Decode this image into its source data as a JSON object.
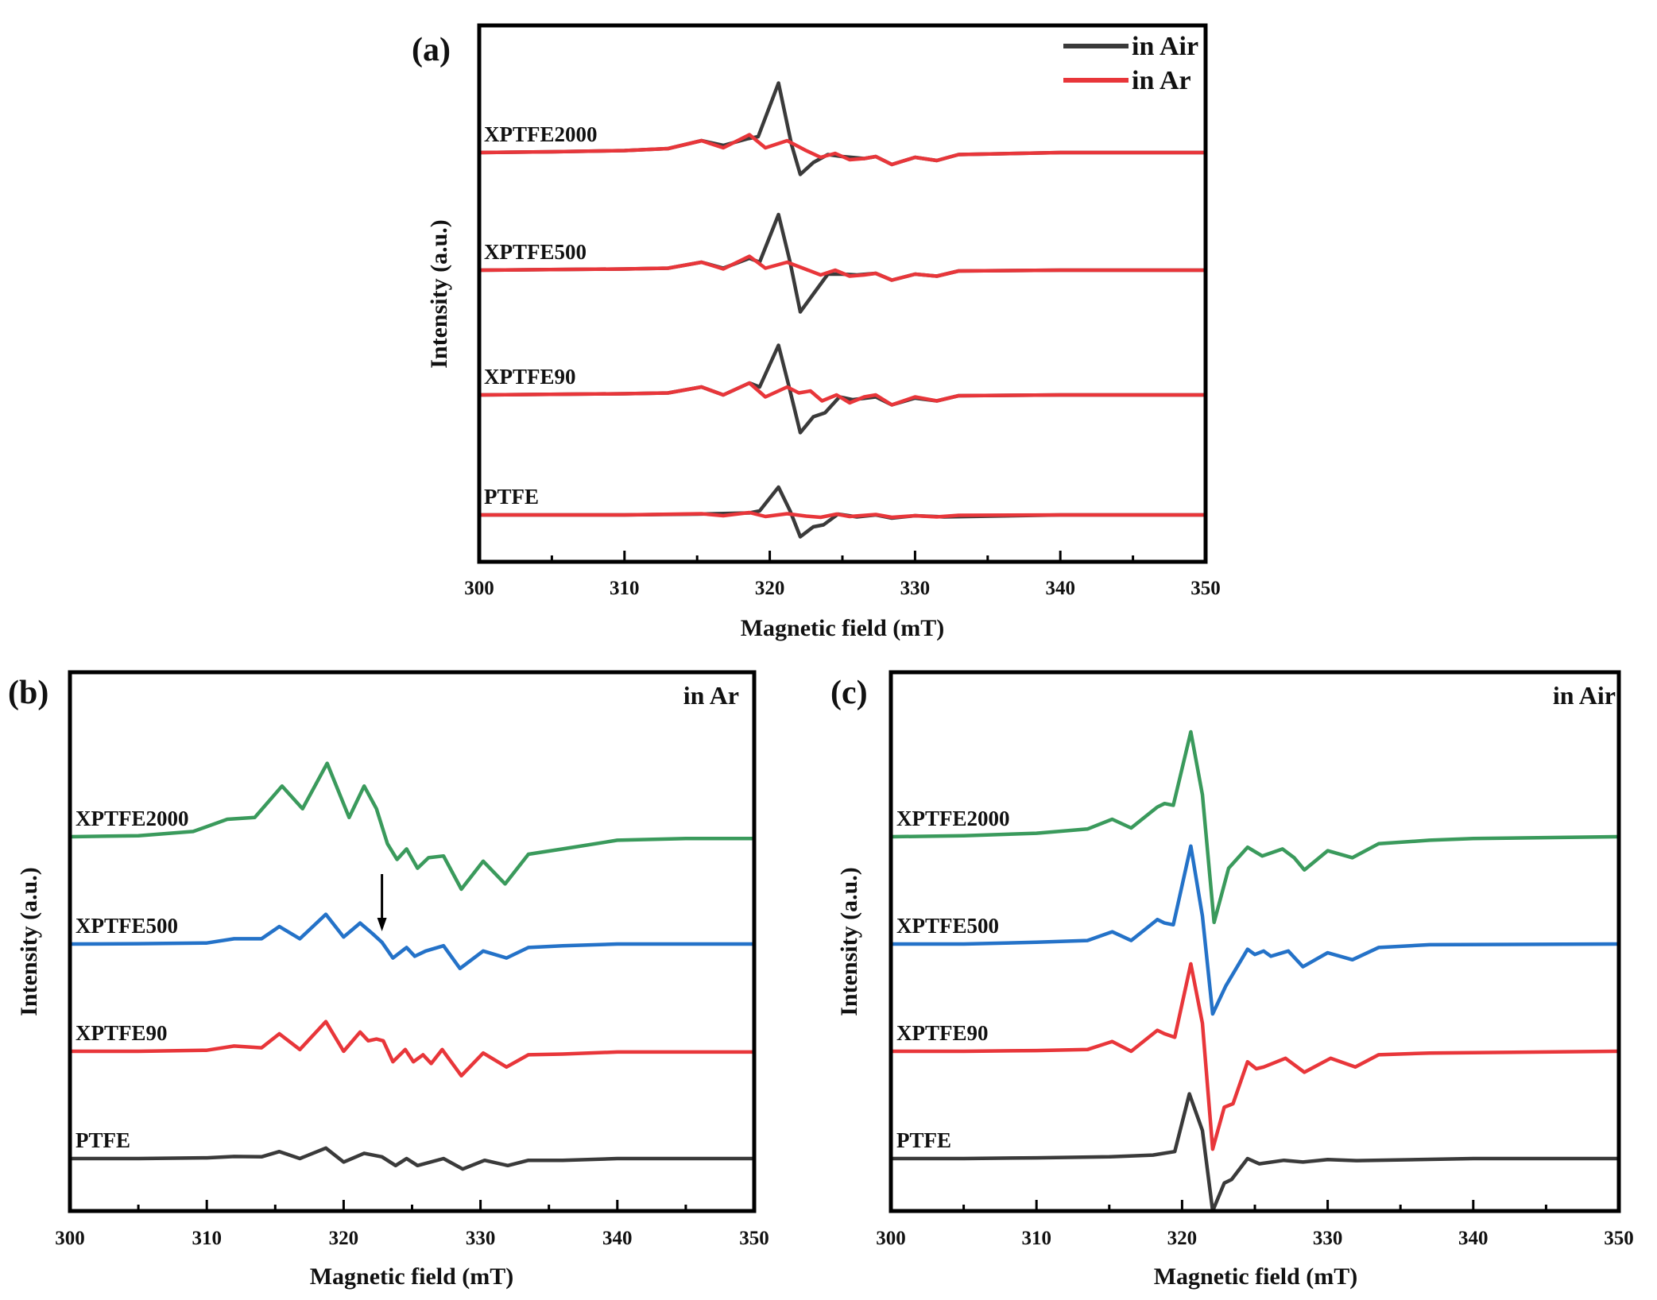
{
  "chart_data": [
    {
      "panel": "(a)",
      "type": "line",
      "xlabel": "Magnetic field (mT)",
      "ylabel": "Intensity (a.u.)",
      "xlim": [
        300,
        350
      ],
      "xticks": [
        300,
        310,
        320,
        330,
        340,
        350
      ],
      "legend": {
        "position": "top-right",
        "entries": [
          {
            "label": "in Air",
            "color": "#3a3a3a"
          },
          {
            "label": "in Ar",
            "color": "#e8363a"
          }
        ]
      },
      "sample_labels": [
        "XPTFE2000",
        "XPTFE500",
        "XPTFE90",
        "PTFE"
      ],
      "series": [
        {
          "name": "XPTFE2000 in Air",
          "color": "#3a3a3a",
          "offset": 3,
          "x": [
            300,
            305,
            310,
            313,
            315.3,
            316.8,
            318.5,
            319.2,
            320.6,
            321.5,
            322.1,
            323,
            324,
            325,
            326.5,
            327.3,
            328.4,
            330,
            331.5,
            333,
            340,
            350
          ],
          "y": [
            0,
            0.02,
            0.05,
            0.1,
            0.3,
            0.18,
            0.35,
            0.4,
            1.75,
            0.2,
            -0.55,
            -0.25,
            -0.05,
            -0.1,
            -0.15,
            -0.1,
            -0.3,
            -0.12,
            -0.2,
            -0.05,
            0,
            0
          ]
        },
        {
          "name": "XPTFE2000 in Ar",
          "color": "#e8363a",
          "offset": 3,
          "x": [
            300,
            305,
            310,
            313,
            315.3,
            316.8,
            318.6,
            319.7,
            321.2,
            322.5,
            323.5,
            324.5,
            325.5,
            326.5,
            327.3,
            328.4,
            330,
            331.5,
            333,
            340,
            350
          ],
          "y": [
            0,
            0.02,
            0.05,
            0.1,
            0.3,
            0.12,
            0.45,
            0.12,
            0.3,
            0.05,
            -0.12,
            -0.02,
            -0.18,
            -0.15,
            -0.1,
            -0.3,
            -0.12,
            -0.2,
            -0.05,
            0,
            0
          ]
        },
        {
          "name": "XPTFE500 in Air",
          "color": "#3a3a3a",
          "offset": 2,
          "x": [
            300,
            310,
            313,
            315.3,
            316.8,
            318.6,
            319.3,
            320.6,
            321.4,
            322.1,
            323,
            324,
            325,
            326,
            327.3,
            328.4,
            330,
            331.5,
            333,
            340,
            350
          ],
          "y": [
            0,
            0.03,
            0.05,
            0.2,
            0.05,
            0.3,
            0.2,
            1.4,
            0.2,
            -1.05,
            -0.6,
            -0.1,
            -0.1,
            -0.12,
            -0.08,
            -0.25,
            -0.1,
            -0.15,
            -0.02,
            0,
            0
          ]
        },
        {
          "name": "XPTFE500 in Ar",
          "color": "#e8363a",
          "offset": 2,
          "x": [
            300,
            310,
            313,
            315.3,
            316.8,
            318.6,
            319.7,
            321.2,
            322.5,
            323.5,
            324.5,
            325.5,
            326.5,
            327.3,
            328.4,
            330,
            331.5,
            333,
            340,
            350
          ],
          "y": [
            0,
            0.03,
            0.05,
            0.2,
            0.03,
            0.35,
            0.05,
            0.2,
            0.02,
            -0.12,
            0.0,
            -0.15,
            -0.12,
            -0.08,
            -0.25,
            -0.1,
            -0.15,
            -0.02,
            0,
            0
          ]
        },
        {
          "name": "XPTFE90 in Air",
          "color": "#3a3a3a",
          "offset": 1,
          "x": [
            300,
            310,
            313,
            315.3,
            316.8,
            318.6,
            319.3,
            320.6,
            321.4,
            322.1,
            323,
            323.8,
            324.8,
            325.7,
            327.3,
            328.4,
            330,
            331.5,
            333,
            340,
            350
          ],
          "y": [
            0,
            0.03,
            0.05,
            0.2,
            0.0,
            0.3,
            0.2,
            1.25,
            0.1,
            -0.95,
            -0.55,
            -0.45,
            -0.05,
            -0.12,
            -0.05,
            -0.25,
            -0.08,
            -0.15,
            -0.02,
            0,
            0
          ]
        },
        {
          "name": "XPTFE90 in Ar",
          "color": "#e8363a",
          "offset": 1,
          "x": [
            300,
            310,
            313,
            315.3,
            316.8,
            318.6,
            319.7,
            321.2,
            322,
            322.8,
            323.6,
            324.6,
            325.5,
            326.5,
            327.3,
            328.4,
            330,
            331.5,
            333,
            340,
            350
          ],
          "y": [
            0,
            0.03,
            0.05,
            0.2,
            0.0,
            0.3,
            -0.05,
            0.2,
            0.05,
            0.1,
            -0.15,
            0.0,
            -0.2,
            -0.05,
            0.0,
            -0.25,
            -0.05,
            -0.15,
            -0.02,
            0,
            0
          ]
        },
        {
          "name": "PTFE in Air",
          "color": "#3a3a3a",
          "offset": 0,
          "x": [
            300,
            310,
            315,
            318.6,
            319.3,
            320.6,
            321.4,
            322.1,
            323,
            323.7,
            324.7,
            326,
            327.3,
            328.4,
            330,
            332,
            340,
            350
          ],
          "y": [
            0,
            0.0,
            0.02,
            0.05,
            0.1,
            0.7,
            0.1,
            -0.55,
            -0.3,
            -0.25,
            0.02,
            -0.05,
            0.0,
            -0.08,
            -0.02,
            -0.05,
            0,
            0
          ]
        },
        {
          "name": "PTFE in Ar",
          "color": "#e8363a",
          "offset": 0,
          "x": [
            300,
            310,
            315.3,
            316.8,
            318.6,
            319.7,
            321.2,
            322.5,
            323.5,
            324.6,
            325.5,
            327.3,
            328.4,
            330,
            331.5,
            333,
            340,
            350
          ],
          "y": [
            0,
            0.0,
            0.03,
            -0.02,
            0.06,
            -0.04,
            0.03,
            -0.03,
            -0.06,
            0.02,
            -0.04,
            0.01,
            -0.06,
            -0.02,
            -0.05,
            -0.01,
            0,
            0
          ]
        }
      ]
    },
    {
      "panel": "(b)",
      "type": "line",
      "annotation": "in Ar",
      "xlabel": "Magnetic field (mT)",
      "ylabel": "Intensity (a.u.)",
      "xlim": [
        300,
        350
      ],
      "xticks": [
        300,
        310,
        320,
        330,
        340,
        350
      ],
      "arrow_at_x": 322.8,
      "sample_labels": [
        "XPTFE2000",
        "XPTFE500",
        "XPTFE90",
        "PTFE"
      ],
      "series": [
        {
          "name": "XPTFE2000",
          "color": "#3a9a5c",
          "offset": 3,
          "x": [
            300,
            305,
            309,
            311.5,
            313.5,
            315.5,
            317,
            318.8,
            320.4,
            321.5,
            322.4,
            323.2,
            323.9,
            324.6,
            325.4,
            326.2,
            327.3,
            328.6,
            330.2,
            331.8,
            333.5,
            336,
            340,
            345,
            350
          ],
          "y": [
            0,
            0.03,
            0.15,
            0.5,
            0.55,
            1.45,
            0.8,
            2.1,
            0.55,
            1.45,
            0.8,
            -0.2,
            -0.65,
            -0.35,
            -0.9,
            -0.6,
            -0.55,
            -1.5,
            -0.7,
            -1.35,
            -0.5,
            -0.35,
            -0.1,
            -0.05,
            -0.05
          ]
        },
        {
          "name": "XPTFE500",
          "color": "#2472c8",
          "offset": 2,
          "x": [
            300,
            305,
            310,
            312,
            314,
            315.3,
            316.8,
            318.7,
            320,
            321.2,
            322.1,
            322.8,
            323.6,
            324.6,
            325.2,
            326,
            327.3,
            328.5,
            330.2,
            331.9,
            333.5,
            336,
            340,
            350
          ],
          "y": [
            0,
            0.01,
            0.03,
            0.15,
            0.15,
            0.5,
            0.15,
            0.85,
            0.2,
            0.6,
            0.3,
            0.05,
            -0.4,
            -0.1,
            -0.35,
            -0.2,
            -0.05,
            -0.7,
            -0.2,
            -0.4,
            -0.1,
            -0.05,
            0,
            0
          ]
        },
        {
          "name": "XPTFE90",
          "color": "#e8363a",
          "offset": 1,
          "x": [
            300,
            305,
            310,
            312,
            314,
            315.3,
            316.8,
            318.7,
            320,
            321.2,
            321.8,
            322.4,
            322.9,
            323.6,
            324.5,
            325.1,
            325.8,
            326.4,
            327.2,
            328.6,
            330.2,
            331.9,
            333.5,
            336,
            340,
            350
          ],
          "y": [
            0,
            0.0,
            0.03,
            0.15,
            0.1,
            0.5,
            0.05,
            0.85,
            0.0,
            0.55,
            0.3,
            0.35,
            0.3,
            -0.3,
            0.05,
            -0.3,
            -0.1,
            -0.35,
            0.05,
            -0.7,
            -0.05,
            -0.45,
            -0.1,
            -0.08,
            -0.02,
            -0.02
          ]
        },
        {
          "name": "PTFE",
          "color": "#3a3a3a",
          "offset": 0,
          "x": [
            300,
            305,
            310,
            312,
            314,
            315.3,
            316.8,
            318.7,
            320,
            321.5,
            322.8,
            323.8,
            324.6,
            325.4,
            327.3,
            328.7,
            330.3,
            332,
            333.5,
            336,
            340,
            350
          ],
          "y": [
            0,
            0.0,
            0.02,
            0.06,
            0.05,
            0.2,
            0.0,
            0.3,
            -0.1,
            0.15,
            0.05,
            -0.2,
            0.0,
            -0.2,
            0.0,
            -0.3,
            -0.05,
            -0.2,
            -0.05,
            -0.05,
            0,
            0
          ]
        }
      ]
    },
    {
      "panel": "(c)",
      "type": "line",
      "annotation": "in Air",
      "xlabel": "Magnetic field (mT)",
      "ylabel": "Intensity (a.u.)",
      "xlim": [
        300,
        350
      ],
      "xticks": [
        300,
        310,
        320,
        330,
        340,
        350
      ],
      "sample_labels": [
        "XPTFE2000",
        "XPTFE500",
        "XPTFE90",
        "PTFE"
      ],
      "series": [
        {
          "name": "XPTFE2000",
          "color": "#3a9a5c",
          "offset": 3,
          "x": [
            300,
            305,
            310,
            313.5,
            315.2,
            316.5,
            318.3,
            318.8,
            319.4,
            320.6,
            321.4,
            322.2,
            323.2,
            324.5,
            325.5,
            326.9,
            327.7,
            328.4,
            330,
            331.7,
            333.5,
            337,
            340,
            350
          ],
          "y": [
            0,
            0.03,
            0.1,
            0.22,
            0.5,
            0.25,
            0.85,
            0.95,
            0.9,
            3.0,
            1.2,
            -2.45,
            -0.9,
            -0.3,
            -0.55,
            -0.35,
            -0.6,
            -0.95,
            -0.4,
            -0.6,
            -0.2,
            -0.1,
            -0.05,
            0
          ]
        },
        {
          "name": "XPTFE500",
          "color": "#2472c8",
          "offset": 2,
          "x": [
            300,
            305,
            310,
            313.5,
            315.2,
            316.5,
            318.3,
            318.8,
            319.4,
            320.6,
            321.4,
            322.1,
            323,
            324.5,
            325,
            325.6,
            326.1,
            327.3,
            328.3,
            330,
            331.7,
            333.5,
            337,
            350
          ],
          "y": [
            0,
            0.0,
            0.05,
            0.1,
            0.35,
            0.1,
            0.7,
            0.6,
            0.55,
            2.8,
            0.8,
            -2.0,
            -1.2,
            -0.15,
            -0.3,
            -0.2,
            -0.35,
            -0.2,
            -0.65,
            -0.25,
            -0.45,
            -0.1,
            -0.02,
            0
          ]
        },
        {
          "name": "XPTFE90",
          "color": "#e8363a",
          "offset": 1,
          "x": [
            300,
            305,
            310,
            313.5,
            315.2,
            316.5,
            318.3,
            318.8,
            319.5,
            320.6,
            321.4,
            322.1,
            322.9,
            323.5,
            324.5,
            325.1,
            325.6,
            327.1,
            328.4,
            330.2,
            331.9,
            333.5,
            337,
            350
          ],
          "y": [
            0,
            0.0,
            0.02,
            0.05,
            0.28,
            0.0,
            0.6,
            0.5,
            0.4,
            2.5,
            0.8,
            -2.8,
            -1.6,
            -1.5,
            -0.3,
            -0.5,
            -0.45,
            -0.2,
            -0.6,
            -0.2,
            -0.45,
            -0.1,
            -0.05,
            0
          ]
        },
        {
          "name": "PTFE",
          "color": "#3a3a3a",
          "offset": 0,
          "x": [
            300,
            305,
            310,
            315,
            318,
            319.5,
            320.5,
            321.4,
            322.1,
            322.9,
            323.4,
            324.5,
            325.3,
            327,
            328.3,
            330,
            332,
            340,
            350
          ],
          "y": [
            0,
            0.0,
            0.02,
            0.05,
            0.1,
            0.2,
            1.85,
            0.8,
            -1.5,
            -0.7,
            -0.6,
            0.0,
            -0.15,
            -0.05,
            -0.1,
            -0.03,
            -0.06,
            0,
            0
          ]
        }
      ]
    }
  ]
}
